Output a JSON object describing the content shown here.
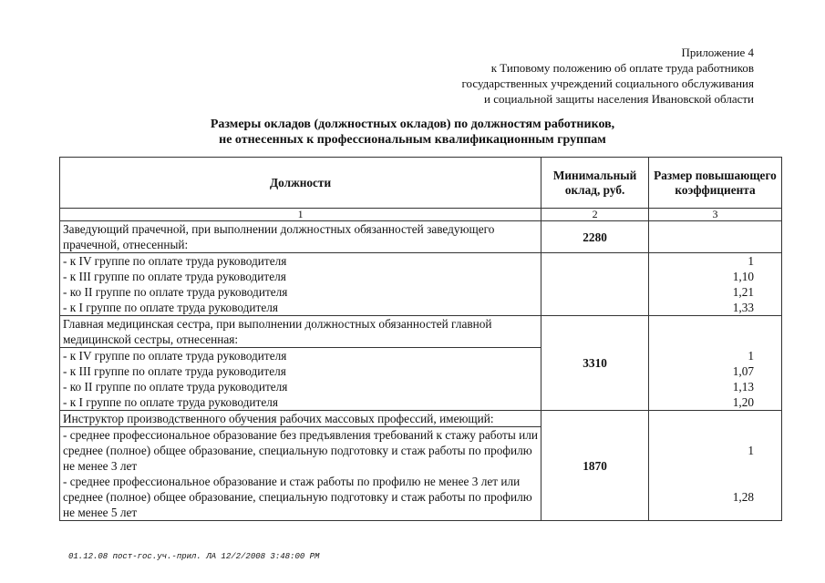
{
  "appendix": [
    "Приложение 4",
    "к Типовому положению об оплате труда работников",
    "государственных учреждений социального обслуживания",
    "и социальной защиты населения Ивановской области"
  ],
  "title": [
    "Размеры окладов (должностных окладов) по должностям работников,",
    "не отнесенных к профессиональным квалификационным группам"
  ],
  "table": {
    "headers": [
      "Должности",
      "Минимальный оклад, руб.",
      "Размер повышающего коэффициента"
    ],
    "col_numbers": [
      "1",
      "2",
      "3"
    ],
    "groups": [
      {
        "title": "Заведующий прачечной, при выполнении должностных обязанностей заведующего прачечной, отнесенный:",
        "salary": "2280",
        "rows": [
          {
            "label": "- к IV группе по оплате труда руководителя",
            "coef": "1"
          },
          {
            "label": "- к III группе по оплате труда руководителя",
            "coef": "1,10"
          },
          {
            "label": "- ко II группе по оплате труда руководителя",
            "coef": "1,21"
          },
          {
            "label": "- к I группе по оплате труда руководителя",
            "coef": "1,33"
          }
        ]
      },
      {
        "title": "Главная медицинская сестра, при выполнении должностных обязанностей главной медицинской сестры, отнесенная:",
        "salary": "3310",
        "rows": [
          {
            "label": "- к IV группе по оплате труда руководителя",
            "coef": "1"
          },
          {
            "label": "- к III группе по оплате труда руководителя",
            "coef": "1,07"
          },
          {
            "label": "- ко II группе по оплате труда руководителя",
            "coef": "1,13"
          },
          {
            "label": "- к I группе по оплате труда руководителя",
            "coef": "1,20"
          }
        ]
      },
      {
        "title": "Инструктор производственного обучения рабочих массовых профессий, имеющий:",
        "salary": "1870",
        "rows": [
          {
            "label": "- среднее профессиональное образование без предъявления требований к стажу работы или среднее (полное) общее образование, специальную подготовку и стаж работы по профилю не менее 3 лет",
            "coef": "1"
          },
          {
            "label": "- среднее профессиональное образование и стаж работы по профилю не менее 3 лет или среднее (полное) общее образование, специальную подготовку и стаж работы по профилю не менее 5 лет",
            "coef": "1,28"
          }
        ]
      }
    ]
  },
  "footer": "01.12.08  пост-гос.уч.-прил. ЛА 12/2/2008 3:48:00 PM"
}
